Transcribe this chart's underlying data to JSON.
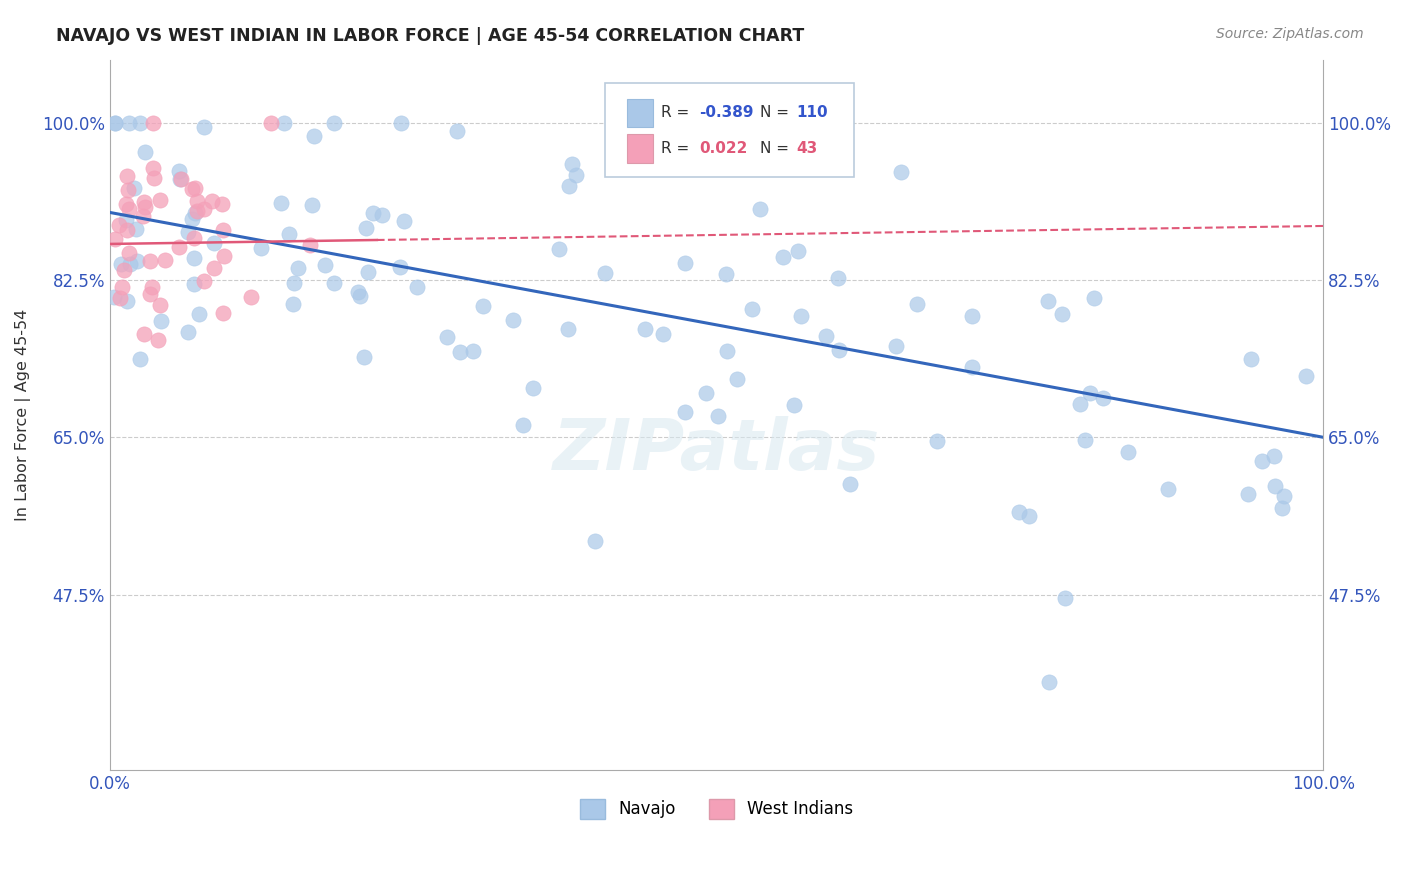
{
  "title": "NAVAJO VS WEST INDIAN IN LABOR FORCE | AGE 45-54 CORRELATION CHART",
  "source": "Source: ZipAtlas.com",
  "ylabel": "In Labor Force | Age 45-54",
  "xlim": [
    0,
    100
  ],
  "ylim": [
    28,
    107
  ],
  "yticks": [
    47.5,
    65.0,
    82.5,
    100.0
  ],
  "xtick_labels": [
    "0.0%",
    "100.0%"
  ],
  "ytick_labels": [
    "47.5%",
    "65.0%",
    "82.5%",
    "100.0%"
  ],
  "navajo_R": -0.389,
  "navajo_N": 110,
  "westindian_R": 0.022,
  "westindian_N": 43,
  "navajo_color": "#aac8e8",
  "navajo_line_color": "#3366bb",
  "westindian_color": "#f4a0b8",
  "westindian_line_color": "#e05878",
  "legend_navajo": "Navajo",
  "legend_westindian": "West Indians",
  "watermark": "ZIPatlas",
  "navajo_trendline": [
    90.0,
    65.0
  ],
  "westindian_trendline_solid": [
    86.5,
    87.5
  ],
  "westindian_trendline_end": [
    88.5
  ]
}
